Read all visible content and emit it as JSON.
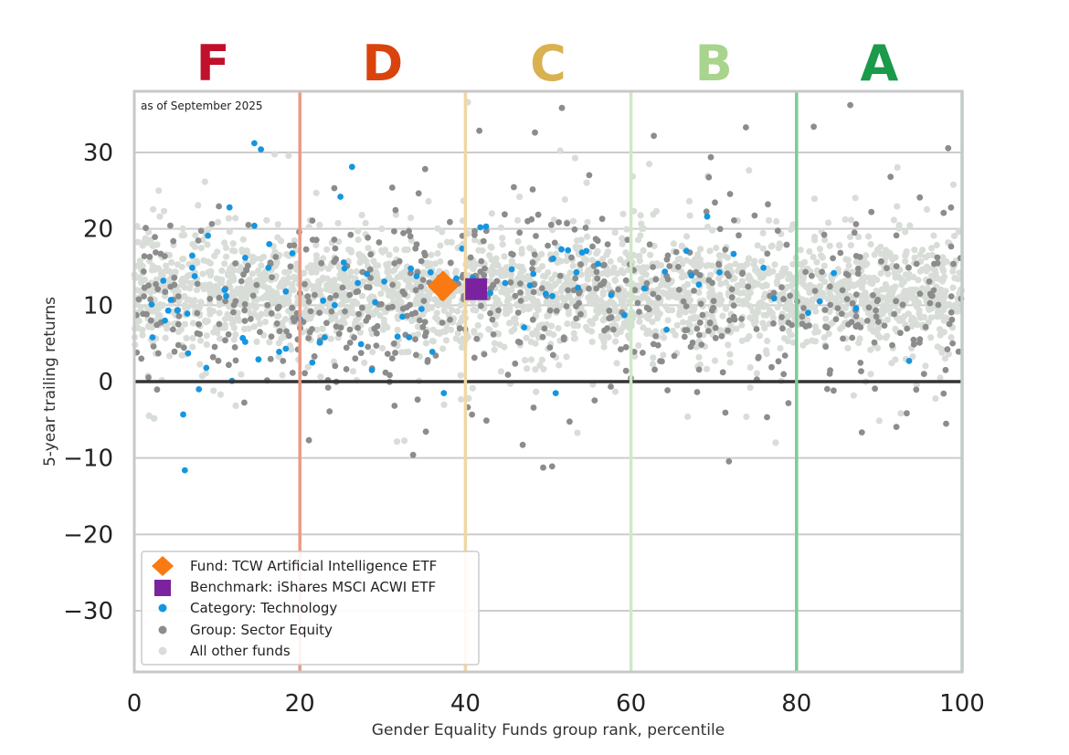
{
  "chart_data": {
    "type": "scatter",
    "annotation": "as of September 2025",
    "xlabel": "Gender Equality Funds group rank, percentile",
    "ylabel": "5-year trailing returns",
    "xlim": [
      0,
      100
    ],
    "ylim": [
      -38,
      38
    ],
    "xticks": [
      "0",
      "20",
      "40",
      "60",
      "80",
      "100"
    ],
    "yticks": [
      "30",
      "20",
      "10",
      "0",
      "−10",
      "−20",
      "−30"
    ],
    "ytick_values": [
      30,
      20,
      10,
      0,
      -10,
      -20,
      -30
    ],
    "grades": [
      {
        "label": "F",
        "center": 9.5,
        "color": "#c0102c"
      },
      {
        "label": "D",
        "center": 30,
        "color": "#d9440e"
      },
      {
        "label": "C",
        "center": 50,
        "color": "#d9b14f"
      },
      {
        "label": "B",
        "center": 70,
        "color": "#a8d48d"
      },
      {
        "label": "A",
        "center": 90,
        "color": "#1a9a4a"
      }
    ],
    "grade_boundaries": [
      {
        "x": 20,
        "color": "#ec9a85"
      },
      {
        "x": 40,
        "color": "#f0d7a4"
      },
      {
        "x": 60,
        "color": "#cfe8c5"
      },
      {
        "x": 80,
        "color": "#7ccc96"
      },
      {
        "x": 100,
        "color": "#9ed8b0"
      }
    ],
    "fund": {
      "name": "Fund: TCW Artificial Intelligence ETF",
      "x": 37.3,
      "y": 12.5,
      "color": "#f97a12"
    },
    "benchmark": {
      "name": "Benchmark: iShares MSCI ACWI ETF",
      "x": 41.3,
      "y": 12.1,
      "color": "#7b239e"
    },
    "category_series": {
      "name": "Category: Technology",
      "color": "#1496e0",
      "points": [
        [
          14.5,
          31.2
        ],
        [
          15.3,
          30.4
        ],
        [
          26.3,
          28.1
        ],
        [
          24.9,
          24.2
        ],
        [
          11.5,
          22.8
        ],
        [
          14.5,
          20.4
        ],
        [
          16.3,
          18.0
        ],
        [
          8.9,
          19.1
        ],
        [
          7.0,
          16.5
        ],
        [
          13.4,
          16.2
        ],
        [
          7.0,
          14.9
        ],
        [
          7.3,
          13.8
        ],
        [
          10.9,
          12.0
        ],
        [
          11.1,
          11.2
        ],
        [
          3.5,
          13.2
        ],
        [
          4.4,
          10.7
        ],
        [
          2.1,
          10.1
        ],
        [
          4.1,
          9.3
        ],
        [
          5.2,
          9.3
        ],
        [
          6.4,
          8.9
        ],
        [
          3.7,
          8.0
        ],
        [
          2.2,
          5.8
        ],
        [
          13.1,
          5.7
        ],
        [
          13.4,
          5.2
        ],
        [
          6.5,
          3.7
        ],
        [
          8.7,
          1.8
        ],
        [
          11.8,
          0.1
        ],
        [
          7.8,
          -1.0
        ],
        [
          5.9,
          -4.3
        ],
        [
          6.1,
          -11.6
        ],
        [
          15.0,
          2.9
        ],
        [
          18.3,
          4.3
        ],
        [
          20.0,
          8.2
        ],
        [
          21.5,
          2.5
        ],
        [
          22.4,
          5.1
        ],
        [
          23.0,
          5.8
        ],
        [
          25.3,
          15.6
        ],
        [
          25.4,
          14.8
        ],
        [
          24.2,
          10.0
        ],
        [
          27.0,
          12.9
        ],
        [
          28.1,
          14.1
        ],
        [
          22.8,
          10.6
        ],
        [
          31.8,
          5.9
        ],
        [
          33.2,
          5.8
        ],
        [
          33.4,
          14.8
        ],
        [
          34.1,
          13.8
        ],
        [
          34.7,
          9.5
        ],
        [
          35.8,
          14.3
        ],
        [
          36.0,
          3.9
        ],
        [
          37.4,
          -1.5
        ],
        [
          41.8,
          20.2
        ],
        [
          42.5,
          20.3
        ],
        [
          47.1,
          7.1
        ],
        [
          47.8,
          12.6
        ],
        [
          48.2,
          14.1
        ],
        [
          50.5,
          11.2
        ],
        [
          50.9,
          -1.5
        ],
        [
          53.4,
          14.3
        ],
        [
          53.6,
          12.3
        ],
        [
          54.6,
          17.1
        ],
        [
          56.0,
          15.4
        ],
        [
          57.6,
          11.3
        ],
        [
          59.2,
          8.7
        ],
        [
          61.6,
          12.2
        ],
        [
          64.1,
          14.4
        ],
        [
          64.3,
          6.8
        ],
        [
          66.7,
          17.1
        ],
        [
          67.3,
          13.9
        ],
        [
          68.2,
          12.7
        ],
        [
          69.2,
          21.6
        ],
        [
          70.7,
          14.3
        ],
        [
          72.4,
          16.7
        ],
        [
          76.0,
          14.9
        ],
        [
          77.3,
          10.9
        ],
        [
          81.4,
          9.0
        ],
        [
          82.8,
          10.5
        ],
        [
          84.5,
          14.2
        ],
        [
          87.2,
          9.6
        ],
        [
          93.6,
          2.7
        ],
        [
          51.6,
          17.3
        ],
        [
          52.4,
          17.2
        ],
        [
          54.1,
          16.9
        ],
        [
          50.6,
          16.1
        ],
        [
          49.7,
          11.5
        ],
        [
          45.6,
          14.7
        ],
        [
          44.8,
          12.9
        ],
        [
          43.0,
          11.6
        ],
        [
          38.9,
          13.5
        ],
        [
          39.6,
          17.4
        ],
        [
          40.9,
          13.6
        ],
        [
          30.2,
          13.1
        ],
        [
          29.1,
          10.4
        ],
        [
          32.4,
          8.5
        ],
        [
          27.4,
          4.9
        ],
        [
          28.7,
          1.5
        ],
        [
          18.3,
          11.8
        ],
        [
          19.1,
          16.8
        ],
        [
          16.2,
          14.9
        ],
        [
          17.5,
          3.9
        ]
      ]
    },
    "group_series": {
      "name": "Group: Sector Equity",
      "color": "#8c8c8c"
    },
    "other_series": {
      "name": "All other funds",
      "color": "#d8ddd8"
    }
  }
}
